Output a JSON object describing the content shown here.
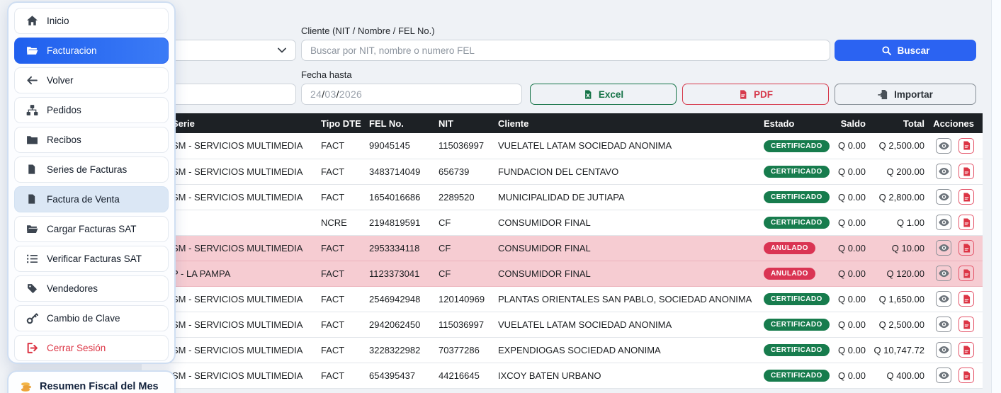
{
  "sidebar": {
    "menu": [
      {
        "label": "Inicio",
        "icon": "home",
        "state": "normal"
      },
      {
        "label": "Facturacion",
        "icon": "folder-open",
        "state": "active"
      },
      {
        "label": "Volver",
        "icon": "arrow-left",
        "state": "normal"
      },
      {
        "label": "Pedidos",
        "icon": "sitemap",
        "state": "normal"
      },
      {
        "label": "Recibos",
        "icon": "folder",
        "state": "normal"
      },
      {
        "label": "Series de Facturas",
        "icon": "file",
        "state": "normal"
      },
      {
        "label": "Factura de Venta",
        "icon": "file",
        "state": "highlight"
      },
      {
        "label": "Cargar Facturas SAT",
        "icon": "folder-open",
        "state": "normal"
      },
      {
        "label": "Verificar Facturas SAT",
        "icon": "list",
        "state": "normal"
      },
      {
        "label": "Vendedores",
        "icon": "tags",
        "state": "normal"
      },
      {
        "label": "Cambio de Clave",
        "icon": "key",
        "state": "normal"
      },
      {
        "label": "Cerrar Sesión",
        "icon": "sign-out",
        "state": "danger"
      }
    ],
    "summary_card": {
      "title": "Resumen Fiscal del Mes",
      "icon": "coins"
    }
  },
  "filters": {
    "cliente_label": "Cliente (NIT / Nombre / FEL No.)",
    "cliente_placeholder": "Buscar por NIT, nombre o numero FEL",
    "buscar_label": "Buscar",
    "fecha_hasta_label": "Fecha hasta",
    "fecha_hasta": {
      "day": "24",
      "month": "03",
      "year": "2026"
    },
    "excel_label": "Excel",
    "pdf_label": "PDF",
    "importar_label": "Importar"
  },
  "table": {
    "columns": [
      "Serie",
      "Tipo DTE",
      "FEL No.",
      "NIT",
      "Cliente",
      "Estado",
      "Saldo",
      "Total",
      "Acciones"
    ],
    "rows": [
      {
        "serie": "SM - SERVICIOS MULTIMEDIA",
        "tipo_dte": "FACT",
        "fel_no": "99045145",
        "nit": "115036997",
        "cliente": "VUELATEL LATAM SOCIEDAD ANONIMA",
        "estado": "CERTIFICADO",
        "saldo": "Q 0.00",
        "total": "Q 2,500.00"
      },
      {
        "serie": "SM - SERVICIOS MULTIMEDIA",
        "tipo_dte": "FACT",
        "fel_no": "3483714049",
        "nit": "656739",
        "cliente": "FUNDACION DEL CENTAVO",
        "estado": "CERTIFICADO",
        "saldo": "Q 0.00",
        "total": "Q 200.00"
      },
      {
        "serie": "SM - SERVICIOS MULTIMEDIA",
        "tipo_dte": "FACT",
        "fel_no": "1654016686",
        "nit": "2289520",
        "cliente": "MUNICIPALIDAD DE JUTIAPA",
        "estado": "CERTIFICADO",
        "saldo": "Q 0.00",
        "total": "Q 2,800.00"
      },
      {
        "serie": "",
        "tipo_dte": "NCRE",
        "fel_no": "2194819591",
        "nit": "CF",
        "cliente": "CONSUMIDOR FINAL",
        "estado": "CERTIFICADO",
        "saldo": "Q 0.00",
        "total": "Q 1.00"
      },
      {
        "serie": "SM - SERVICIOS MULTIMEDIA",
        "tipo_dte": "FACT",
        "fel_no": "2953334118",
        "nit": "CF",
        "cliente": "CONSUMIDOR FINAL",
        "estado": "ANULADO",
        "saldo": "Q 0.00",
        "total": "Q 10.00"
      },
      {
        "serie": "P - LA PAMPA",
        "tipo_dte": "FACT",
        "fel_no": "1123373041",
        "nit": "CF",
        "cliente": "CONSUMIDOR FINAL",
        "estado": "ANULADO",
        "saldo": "Q 0.00",
        "total": "Q 120.00"
      },
      {
        "serie": "SM - SERVICIOS MULTIMEDIA",
        "tipo_dte": "FACT",
        "fel_no": "2546942948",
        "nit": "120140969",
        "cliente": "PLANTAS ORIENTALES SAN PABLO, SOCIEDAD ANONIMA",
        "estado": "CERTIFICADO",
        "saldo": "Q 0.00",
        "total": "Q 1,650.00"
      },
      {
        "serie": "SM - SERVICIOS MULTIMEDIA",
        "tipo_dte": "FACT",
        "fel_no": "2942062450",
        "nit": "115036997",
        "cliente": "VUELATEL LATAM SOCIEDAD ANONIMA",
        "estado": "CERTIFICADO",
        "saldo": "Q 0.00",
        "total": "Q 2,500.00"
      },
      {
        "serie": "SM - SERVICIOS MULTIMEDIA",
        "tipo_dte": "FACT",
        "fel_no": "3228322982",
        "nit": "70377286",
        "cliente": "EXPENDIOGAS SOCIEDAD ANONIMA",
        "estado": "CERTIFICADO",
        "saldo": "Q 0.00",
        "total": "Q 10,747.72"
      },
      {
        "serie": "SM - SERVICIOS MULTIMEDIA",
        "tipo_dte": "FACT",
        "fel_no": "654395437",
        "nit": "44216645",
        "cliente": "IXCOY BATEN URBANO",
        "estado": "CERTIFICADO",
        "saldo": "Q 0.00",
        "total": "Q 400.00"
      }
    ]
  },
  "colors": {
    "accent_blue": "#2b63f2",
    "success_green": "#177c4d",
    "danger_red": "#da3453",
    "anulado_row_pink": "#f6ccd2",
    "table_header_dark": "#1d2125",
    "excel_green": "#157347",
    "pdf_red": "#d63a4c",
    "coins_orange": "#eda33d"
  }
}
